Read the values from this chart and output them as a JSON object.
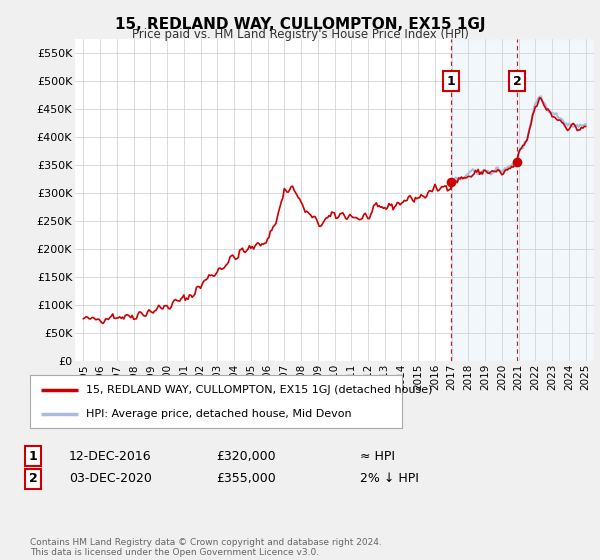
{
  "title": "15, REDLAND WAY, CULLOMPTON, EX15 1GJ",
  "subtitle": "Price paid vs. HM Land Registry's House Price Index (HPI)",
  "legend_line1": "15, REDLAND WAY, CULLOMPTON, EX15 1GJ (detached house)",
  "legend_line2": "HPI: Average price, detached house, Mid Devon",
  "transaction1_date": "12-DEC-2016",
  "transaction1_price": "£320,000",
  "transaction1_hpi": "≈ HPI",
  "transaction2_date": "03-DEC-2020",
  "transaction2_price": "£355,000",
  "transaction2_hpi": "2% ↓ HPI",
  "footer": "Contains HM Land Registry data © Crown copyright and database right 2024.\nThis data is licensed under the Open Government Licence v3.0.",
  "ylim": [
    0,
    575000
  ],
  "yticks": [
    0,
    50000,
    100000,
    150000,
    200000,
    250000,
    300000,
    350000,
    400000,
    450000,
    500000,
    550000
  ],
  "ytick_labels": [
    "£0",
    "£50K",
    "£100K",
    "£150K",
    "£200K",
    "£250K",
    "£300K",
    "£350K",
    "£400K",
    "£450K",
    "£500K",
    "£550K"
  ],
  "hpi_color": "#aabbdd",
  "price_color": "#cc0000",
  "vline1_color": "#cc0000",
  "vline2_color": "#cc0000",
  "background_color": "#f0f0f0",
  "plot_bg_color": "#ffffff",
  "grid_color": "#cccccc",
  "shade_color": "#cce0f0",
  "transaction1_x": 2016.95,
  "transaction1_y": 320000,
  "transaction2_x": 2020.92,
  "transaction2_y": 355000,
  "hpi_start_x": 2016.95,
  "xlim_left": 1994.5,
  "xlim_right": 2025.5
}
